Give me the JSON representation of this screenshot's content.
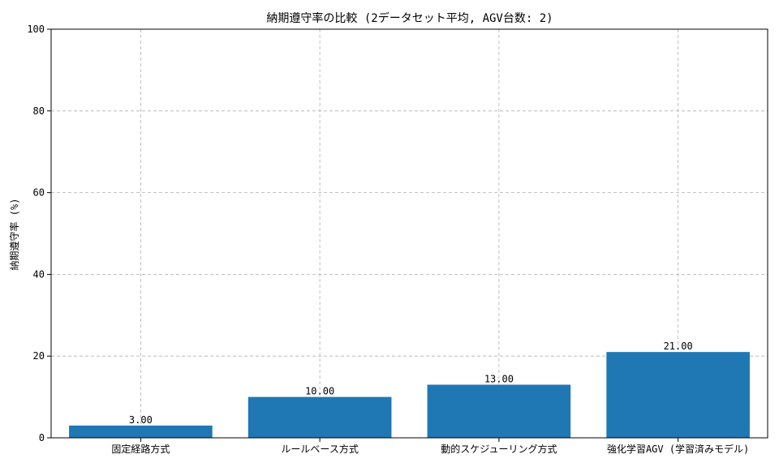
{
  "chart_data": {
    "type": "bar",
    "title": "納期遵守率の比較 (2データセット平均, AGV台数: 2)",
    "xlabel": "",
    "ylabel": "納期遵守率 (%)",
    "categories": [
      "固定経路方式",
      "ルールベース方式",
      "動的スケジューリング方式",
      "強化学習AGV (学習済みモデル)"
    ],
    "values": [
      3.0,
      10.0,
      13.0,
      21.0
    ],
    "value_labels": [
      "3.00",
      "10.00",
      "13.00",
      "21.00"
    ],
    "ylim": [
      0,
      100
    ],
    "yticks": [
      0,
      20,
      40,
      60,
      80,
      100
    ],
    "ytick_labels": [
      "0",
      "20",
      "40",
      "60",
      "80",
      "100"
    ],
    "grid": true,
    "bar_color": "#1f77b4"
  }
}
